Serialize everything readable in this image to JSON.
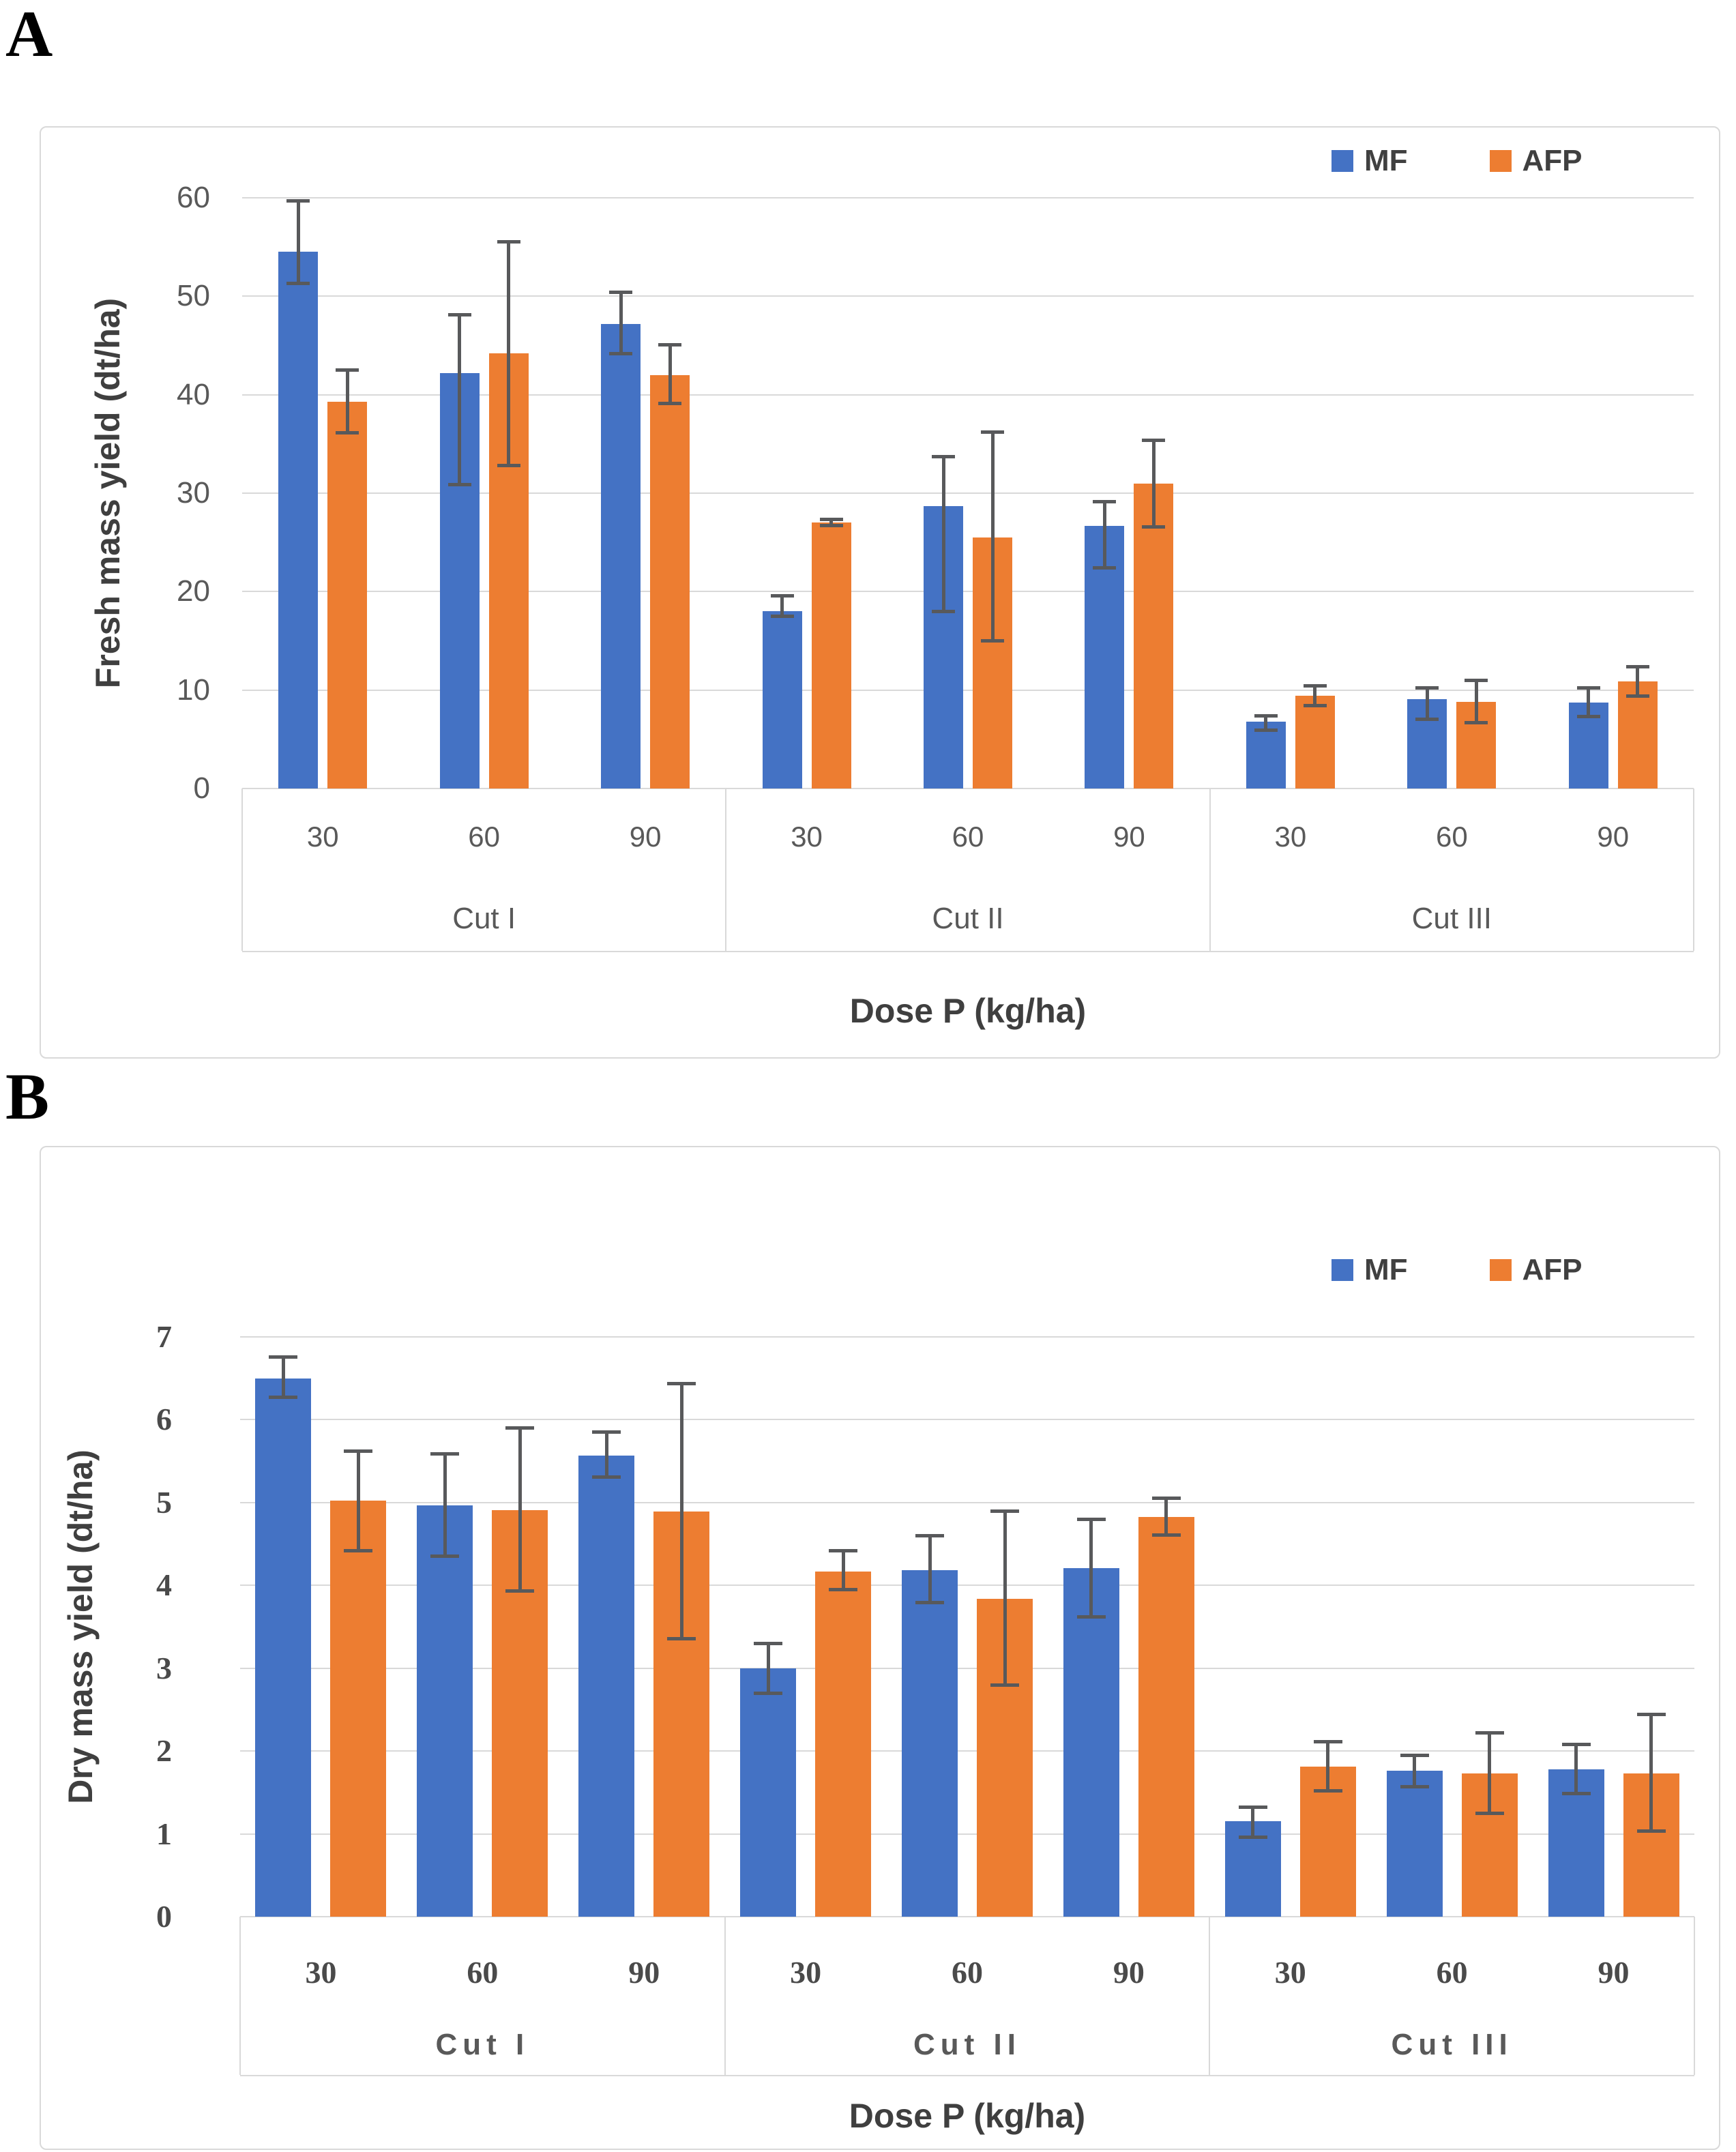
{
  "figure": {
    "panel_labels": [
      "A",
      "B"
    ]
  },
  "legend": {
    "items": [
      {
        "label": "MF",
        "color": "#4472C4"
      },
      {
        "label": "AFP",
        "color": "#ED7D31"
      }
    ]
  },
  "colors": {
    "mf_blue": "#4472C4",
    "afp_orange": "#ED7D31",
    "error_bar": "#58595B",
    "gridline": "#D9D9D9",
    "tick_text": "#595959",
    "axis_title_text": "#3F3F3F"
  },
  "chart_data": [
    {
      "type": "bar",
      "title": "",
      "ylabel": "Fresh mass yield (dt/ha)",
      "xlabel": "Dose P (kg/ha)",
      "ylim": [
        0,
        60
      ],
      "yticks": [
        0,
        10,
        20,
        30,
        40,
        50,
        60
      ],
      "grid": true,
      "legend_position": "top-right",
      "group_labels": [
        "Cut I",
        "Cut II",
        "Cut III"
      ],
      "categories": [
        "30",
        "60",
        "90",
        "30",
        "60",
        "90",
        "30",
        "60",
        "90"
      ],
      "series": [
        {
          "name": "MF",
          "color": "#4472C4",
          "values": [
            54.5,
            42.2,
            47.2,
            18.0,
            28.7,
            26.7,
            6.8,
            9.1,
            8.7
          ],
          "err_low": [
            51.3,
            30.9,
            44.2,
            17.5,
            18.0,
            22.4,
            5.9,
            7.0,
            7.3
          ],
          "err_high": [
            59.7,
            48.1,
            50.4,
            19.6,
            33.7,
            29.1,
            7.4,
            10.2,
            10.2
          ]
        },
        {
          "name": "AFP",
          "color": "#ED7D31",
          "values": [
            39.3,
            44.2,
            42.0,
            27.0,
            25.5,
            31.0,
            9.4,
            8.8,
            10.9
          ],
          "err_low": [
            36.1,
            32.8,
            39.1,
            26.7,
            15.0,
            26.6,
            8.4,
            6.7,
            9.4
          ],
          "err_high": [
            42.5,
            55.5,
            45.1,
            27.3,
            36.2,
            35.4,
            10.4,
            11.0,
            12.4
          ]
        }
      ]
    },
    {
      "type": "bar",
      "title": "",
      "ylabel": "Dry mass yield (dt/ha)",
      "xlabel": "Dose P (kg/ha)",
      "ylim": [
        0,
        7
      ],
      "yticks": [
        0,
        1,
        2,
        3,
        4,
        5,
        6,
        7
      ],
      "grid": true,
      "legend_position": "top-right",
      "group_labels": [
        "Cut I",
        "Cut II",
        "Cut III"
      ],
      "categories": [
        "30",
        "60",
        "90",
        "30",
        "60",
        "90",
        "30",
        "60",
        "90"
      ],
      "series": [
        {
          "name": "MF",
          "color": "#4472C4",
          "values": [
            6.5,
            4.97,
            5.57,
            3.0,
            4.18,
            4.21,
            1.15,
            1.76,
            1.78
          ],
          "err_low": [
            6.27,
            4.35,
            5.31,
            2.7,
            3.79,
            3.62,
            0.96,
            1.57,
            1.49
          ],
          "err_high": [
            6.76,
            5.59,
            5.85,
            3.3,
            4.6,
            4.8,
            1.32,
            1.95,
            2.08
          ]
        },
        {
          "name": "AFP",
          "color": "#ED7D31",
          "values": [
            5.02,
            4.91,
            4.89,
            4.17,
            3.84,
            4.83,
            1.81,
            1.73,
            1.73
          ],
          "err_low": [
            4.42,
            3.93,
            3.36,
            3.95,
            2.8,
            4.61,
            1.52,
            1.25,
            1.03
          ],
          "err_high": [
            5.62,
            5.9,
            6.44,
            4.42,
            4.9,
            5.05,
            2.11,
            2.22,
            2.44
          ]
        }
      ]
    }
  ]
}
